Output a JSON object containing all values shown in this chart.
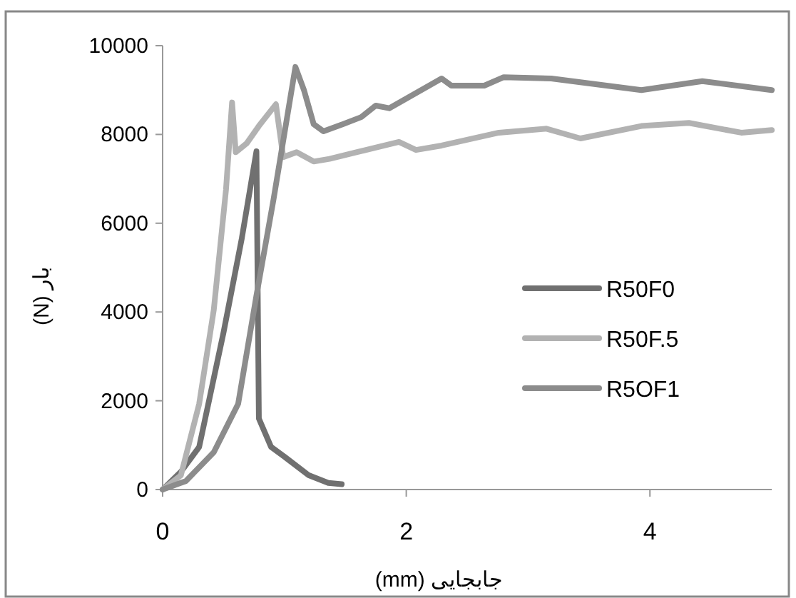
{
  "chart_data": {
    "type": "line",
    "xlabel": "جابجایی (mm)",
    "ylabel": "بار (N)",
    "xlim": [
      0,
      5
    ],
    "xticks": [
      0,
      2,
      4
    ],
    "ylim": [
      0,
      10000
    ],
    "yticks": [
      0,
      2000,
      4000,
      6000,
      8000,
      10000
    ],
    "grid": false,
    "legend": "right",
    "series": [
      {
        "name": "R50F0",
        "color": "#707070",
        "x": [
          0,
          0.15,
          0.3,
          0.5,
          0.65,
          0.77,
          0.79,
          0.89,
          1.0,
          1.2,
          1.36,
          1.47
        ],
        "values": [
          0,
          400,
          960,
          3540,
          5660,
          7620,
          1600,
          960,
          740,
          320,
          150,
          120
        ]
      },
      {
        "name": "R50F.5",
        "color": "#b2b2b2",
        "x": [
          0,
          0.15,
          0.3,
          0.42,
          0.52,
          0.57,
          0.6,
          0.69,
          0.79,
          0.93,
          0.99,
          1.1,
          1.24,
          1.37,
          1.59,
          1.94,
          2.08,
          2.29,
          2.76,
          3.15,
          3.43,
          3.93,
          4.32,
          4.75,
          5.0
        ],
        "values": [
          0,
          320,
          1930,
          4050,
          6750,
          8720,
          7600,
          7800,
          8190,
          8680,
          7490,
          7600,
          7390,
          7450,
          7600,
          7830,
          7650,
          7750,
          8040,
          8130,
          7910,
          8190,
          8260,
          8040,
          8100
        ]
      },
      {
        "name": "R5OF1",
        "color": "#8c8c8c",
        "x": [
          0,
          0.19,
          0.42,
          0.62,
          0.77,
          0.91,
          1.09,
          1.16,
          1.24,
          1.32,
          1.48,
          1.63,
          1.75,
          1.86,
          2.29,
          2.37,
          2.64,
          2.8,
          3.19,
          3.93,
          4.43,
          5.0
        ],
        "values": [
          0,
          190,
          840,
          1930,
          4370,
          6530,
          9520,
          9000,
          8230,
          8070,
          8230,
          8390,
          8650,
          8590,
          9260,
          9100,
          9100,
          9290,
          9260,
          9000,
          9200,
          9000
        ]
      }
    ]
  }
}
